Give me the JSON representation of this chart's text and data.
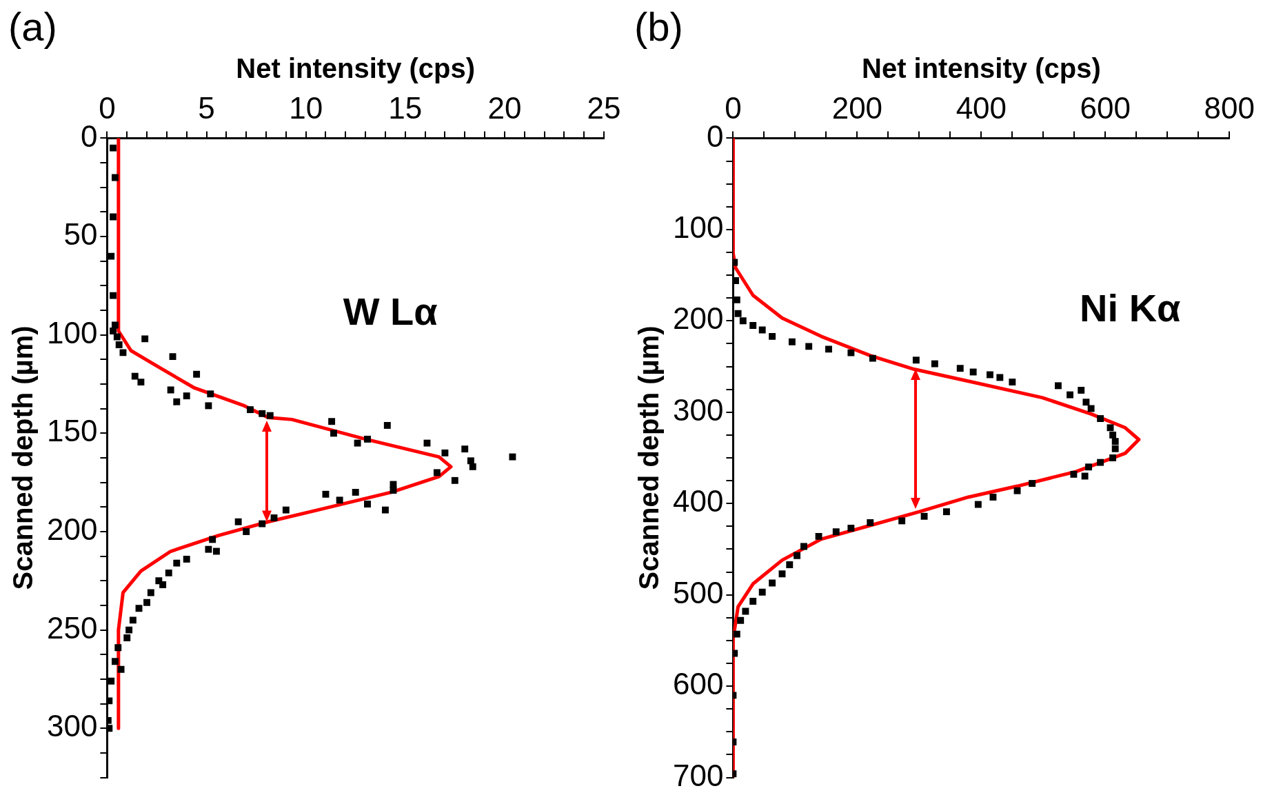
{
  "chart_data": [
    {
      "type": "scatter",
      "title": "(a)",
      "xlabel": "Net intensity (cps)",
      "ylabel": "Scanned depth (µm)",
      "annotations": [
        "W Lα"
      ],
      "xlim": [
        0,
        25
      ],
      "xticks": [
        0,
        {
          "value": 1,
          "label": null
        },
        {
          "value": 2,
          "label": null
        },
        {
          "value": 3,
          "label": null
        },
        {
          "value": 4,
          "label": null
        },
        5,
        {
          "value": 6,
          "label": null
        },
        {
          "value": 7,
          "label": null
        },
        {
          "value": 8,
          "label": null
        },
        {
          "value": 9,
          "label": null
        },
        10,
        {
          "value": 11,
          "label": null
        },
        {
          "value": 12,
          "label": null
        },
        {
          "value": 13,
          "label": null
        },
        {
          "value": 14,
          "label": null
        },
        15,
        {
          "value": 16,
          "label": null
        },
        {
          "value": 17,
          "label": null
        },
        {
          "value": 18,
          "label": null
        },
        {
          "value": 19,
          "label": null
        },
        20,
        {
          "value": 21,
          "label": null
        },
        {
          "value": 22,
          "label": null
        },
        {
          "value": 23,
          "label": null
        },
        {
          "value": 24,
          "label": null
        },
        25
      ],
      "ylim": [
        325,
        0
      ],
      "yticks": [
        0,
        {
          "value": 12.5,
          "label": null
        },
        {
          "value": 25,
          "label": null
        },
        {
          "value": 37.5,
          "label": null
        },
        50,
        {
          "value": 62.5,
          "label": null
        },
        {
          "value": 75,
          "label": null
        },
        {
          "value": 87.5,
          "label": null
        },
        100,
        {
          "value": 112.5,
          "label": null
        },
        {
          "value": 125,
          "label": null
        },
        {
          "value": 137.5,
          "label": null
        },
        150,
        {
          "value": 162.5,
          "label": null
        },
        {
          "value": 175,
          "label": null
        },
        {
          "value": 187.5,
          "label": null
        },
        200,
        {
          "value": 212.5,
          "label": null
        },
        {
          "value": 225,
          "label": null
        },
        {
          "value": 237.5,
          "label": null
        },
        250,
        {
          "value": 262.5,
          "label": null
        },
        {
          "value": 275,
          "label": null
        },
        {
          "value": 287.5,
          "label": null
        },
        300,
        {
          "value": 312.5,
          "label": null
        },
        {
          "value": 325,
          "label": null
        }
      ],
      "grid": false,
      "legend": false,
      "marker": "square",
      "series": [
        {
          "type": "scatter",
          "color": "#000000",
          "x": [
            0.3,
            0.4,
            0.3,
            0.2,
            0.3,
            0.4,
            0.3,
            0.5,
            1.9,
            0.6,
            0.8,
            1.4,
            1.7,
            3.3,
            4.5,
            3.2,
            3.5,
            4.0,
            5.2,
            5.1,
            7.2,
            7.8,
            8.2,
            11.3,
            11.4,
            14.1,
            13.1,
            12.6,
            16.1,
            17.0,
            18.0,
            18.3,
            18.4,
            20.4,
            16.6,
            17.5,
            14.4,
            14.4,
            11.0,
            11.7,
            12.5,
            13.1,
            14.0,
            9.0,
            8.4,
            7.8,
            6.6,
            7.0,
            5.3,
            5.1,
            5.5,
            4.0,
            3.5,
            3.1,
            2.6,
            2.8,
            2.2,
            2.0,
            1.6,
            1.3,
            1.1,
            1.0,
            0.55,
            0.4,
            0.7,
            0.2,
            0.1,
            0.05,
            0.1
          ],
          "values": [
            5,
            20,
            40,
            60,
            80,
            95,
            98,
            101,
            102,
            105,
            109,
            121,
            124,
            111,
            120,
            128,
            134,
            131,
            130,
            136,
            138,
            140,
            141,
            144,
            150,
            146,
            153,
            155,
            155,
            160,
            158,
            164,
            167,
            162,
            170,
            174,
            176,
            179,
            181,
            184,
            180,
            186,
            189,
            189,
            193,
            196,
            195,
            200,
            204,
            209,
            210,
            214,
            216,
            221,
            225,
            227,
            231,
            236,
            239,
            245,
            250,
            254,
            259,
            266,
            270,
            276,
            286,
            296,
            300
          ]
        },
        {
          "type": "line",
          "color": "#ff0000",
          "marker": "none",
          "x": [
            0.57,
            0.57,
            1.2,
            2.7,
            4.4,
            6.9,
            8.1,
            9.3,
            13,
            16.7,
            17.3,
            16.7,
            14.3,
            10.6,
            8.1,
            5.6,
            3.2,
            1.7,
            0.8,
            0.57,
            0.57
          ],
          "values": [
            0,
            98,
            108,
            117,
            127,
            136,
            142,
            143,
            153,
            162,
            167,
            172,
            180,
            189,
            195,
            202,
            210,
            220,
            231,
            250,
            300
          ]
        }
      ]
    },
    {
      "type": "scatter",
      "title": "(b)",
      "xlabel": "Net intensity (cps)",
      "ylabel": "Scanned depth (µm)",
      "annotations": [
        "Ni Kα"
      ],
      "xlim": [
        0,
        800
      ],
      "xticks": [
        0,
        {
          "value": 50,
          "label": null
        },
        {
          "value": 100,
          "label": null
        },
        {
          "value": 150,
          "label": null
        },
        200,
        {
          "value": 250,
          "label": null
        },
        {
          "value": 300,
          "label": null
        },
        {
          "value": 350,
          "label": null
        },
        400,
        {
          "value": 450,
          "label": null
        },
        {
          "value": 500,
          "label": null
        },
        {
          "value": 550,
          "label": null
        },
        600,
        {
          "value": 650,
          "label": null
        },
        {
          "value": 700,
          "label": null
        },
        {
          "value": 750,
          "label": null
        },
        800
      ],
      "ylim": [
        700,
        0
      ],
      "yticks": [
        0,
        {
          "value": 25,
          "label": null
        },
        {
          "value": 50,
          "label": null
        },
        {
          "value": 75,
          "label": null
        },
        100,
        {
          "value": 125,
          "label": null
        },
        {
          "value": 150,
          "label": null
        },
        {
          "value": 175,
          "label": null
        },
        200,
        {
          "value": 225,
          "label": null
        },
        {
          "value": 250,
          "label": null
        },
        {
          "value": 275,
          "label": null
        },
        300,
        {
          "value": 325,
          "label": null
        },
        {
          "value": 350,
          "label": null
        },
        {
          "value": 375,
          "label": null
        },
        400,
        {
          "value": 425,
          "label": null
        },
        {
          "value": 450,
          "label": null
        },
        {
          "value": 475,
          "label": null
        },
        500,
        {
          "value": 525,
          "label": null
        },
        {
          "value": 550,
          "label": null
        },
        {
          "value": 575,
          "label": null
        },
        600,
        {
          "value": 625,
          "label": null
        },
        {
          "value": 650,
          "label": null
        },
        {
          "value": 675,
          "label": null
        },
        700
      ],
      "grid": false,
      "legend": false,
      "marker": "square",
      "series": [
        {
          "type": "scatter",
          "color": "#000000",
          "x": [
            2,
            4,
            6,
            8,
            16,
            32,
            47,
            63,
            95,
            122,
            154,
            190,
            225,
            295,
            325,
            366,
            387,
            414,
            430,
            450,
            524,
            543,
            561,
            569,
            577,
            592,
            608,
            612,
            616,
            616,
            612,
            592,
            573,
            567,
            549,
            482,
            458,
            419,
            395,
            344,
            308,
            272,
            221,
            190,
            166,
            138,
            114,
            103,
            91,
            79,
            63,
            47,
            32,
            20,
            12,
            6,
            2,
            0,
            0,
            0
          ],
          "values": [
            136,
            156,
            177,
            192,
            200,
            205,
            210,
            217,
            223,
            228,
            231,
            235,
            241,
            243,
            247,
            252,
            256,
            259,
            262,
            267,
            271,
            281,
            276,
            289,
            296,
            307,
            317,
            325,
            332,
            340,
            350,
            355,
            360,
            370,
            368,
            378,
            386,
            393,
            401,
            409,
            414,
            419,
            421,
            427,
            431,
            436,
            447,
            457,
            467,
            477,
            487,
            497,
            507,
            518,
            528,
            543,
            564,
            610,
            661,
            696
          ]
        },
        {
          "type": "line",
          "color": "#ff0000",
          "marker": "none",
          "x": [
            0,
            0,
            4,
            32,
            79,
            142,
            221,
            292,
            379,
            498,
            577,
            632,
            654,
            632,
            553,
            458,
            379,
            300,
            221,
            142,
            79,
            32,
            8,
            0,
            0
          ],
          "values": [
            0,
            126,
            142,
            172,
            197,
            217,
            238,
            253,
            266,
            284,
            302,
            317,
            330,
            345,
            365,
            381,
            393,
            409,
            424,
            439,
            462,
            488,
            513,
            548,
            700
          ]
        }
      ]
    }
  ]
}
